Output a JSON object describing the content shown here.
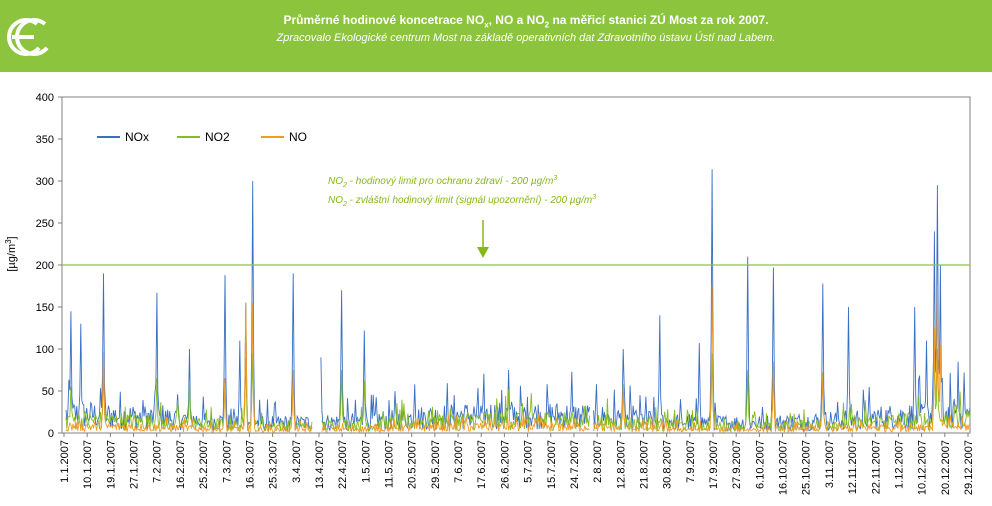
{
  "header": {
    "title_main": "Průměrné hodinové koncetrace NO",
    "title_sub_x": "x",
    "title_mid": ", NO a NO",
    "title_sub_2": "2",
    "title_end": " na měřicí stanici ZÚ Most za rok 2007.",
    "subtitle": "Zpracovalo Ekologické centrum Most na základě operativních dat Zdravotního ústavu Ústí nad Labem.",
    "logo_text": "ec"
  },
  "colors": {
    "banner": "#8cc43e",
    "nox": "#3a6fc4",
    "no2": "#86bc20",
    "no": "#f29a24",
    "limit_line": "#8cc43e",
    "annotation": "#86b818"
  },
  "chart_data": {
    "type": "line",
    "title": "",
    "ylabel": "[µg/m3]",
    "ylabel_parts": [
      "[µg/m",
      "3",
      "]"
    ],
    "ylim": [
      0,
      400
    ],
    "yticks": [
      "0",
      "50",
      "100",
      "150",
      "200",
      "250",
      "300",
      "350",
      "400"
    ],
    "x_tick_labels": [
      "1.1.2007",
      "10.1.2007",
      "19.1.2007",
      "27.1.2007",
      "7.2.2007",
      "16.2.2007",
      "25.2.2007",
      "7.3.2007",
      "16.3.2007",
      "25.3.2007",
      "3.4.2007",
      "13.4.2007",
      "22.4.2007",
      "1.5.2007",
      "11.5.2007",
      "20.5.2007",
      "29.5.2007",
      "7.6.2007",
      "17.6.2007",
      "26.6.2007",
      "5.7.2007",
      "15.7.2007",
      "24.7.2007",
      "2.8.2007",
      "12.8.2007",
      "21.8.2007",
      "30.8.2007",
      "7.9.2007",
      "17.9.2007",
      "27.9.2007",
      "6.10.2007",
      "16.10.2007",
      "25.10.2007",
      "3.11.2007",
      "12.11.2007",
      "22.11.2007",
      "1.12.2007",
      "10.12.2007",
      "20.12.2007",
      "29.12.2007"
    ],
    "legend_position": "top-left",
    "grid": false,
    "series": [
      {
        "name": "NOx",
        "peaks": [
          [
            9,
            145
          ],
          [
            19,
            130
          ],
          [
            42,
            190
          ],
          [
            96,
            167
          ],
          [
            129,
            100
          ],
          [
            165,
            188
          ],
          [
            180,
            110
          ],
          [
            186,
            155
          ],
          [
            193,
            300
          ],
          [
            234,
            190
          ],
          [
            262,
            90
          ],
          [
            283,
            170
          ],
          [
            306,
            122
          ],
          [
            357,
            58
          ],
          [
            452,
            75
          ],
          [
            516,
            73
          ],
          [
            568,
            100
          ],
          [
            605,
            140
          ],
          [
            645,
            107
          ],
          [
            658,
            314
          ],
          [
            694,
            210
          ],
          [
            720,
            197
          ],
          [
            770,
            178
          ],
          [
            796,
            150
          ],
          [
            863,
            150
          ],
          [
            875,
            110
          ],
          [
            883,
            240
          ],
          [
            886,
            295
          ],
          [
            889,
            200
          ],
          [
            907,
            85
          ],
          [
            913,
            72
          ]
        ]
      },
      {
        "name": "NO2",
        "peaks": [
          [
            9,
            55
          ],
          [
            42,
            75
          ],
          [
            96,
            65
          ],
          [
            129,
            62
          ],
          [
            165,
            65
          ],
          [
            186,
            90
          ],
          [
            193,
            95
          ],
          [
            234,
            70
          ],
          [
            283,
            75
          ],
          [
            306,
            62
          ],
          [
            452,
            52
          ],
          [
            568,
            58
          ],
          [
            658,
            95
          ],
          [
            694,
            75
          ],
          [
            720,
            78
          ],
          [
            770,
            72
          ],
          [
            883,
            95
          ],
          [
            886,
            100
          ]
        ]
      },
      {
        "name": "NO",
        "peaks": [
          [
            42,
            97
          ],
          [
            165,
            65
          ],
          [
            186,
            155
          ],
          [
            193,
            155
          ],
          [
            234,
            75
          ],
          [
            568,
            55
          ],
          [
            658,
            175
          ],
          [
            720,
            85
          ],
          [
            770,
            70
          ],
          [
            883,
            125
          ],
          [
            886,
            175
          ],
          [
            889,
            105
          ]
        ]
      }
    ],
    "annotations": [
      {
        "line1_a": "NO",
        "line1_sub": "2",
        "line1_b": " - hodinový limit pro ochranu zdraví - 200 µg/m",
        "line1_sup": "3"
      },
      {
        "line2_a": "NO",
        "line2_sub": "2",
        "line2_b": " - zvláštní hodinový limit (signál upozornění) - 200 µg/m",
        "line2_sup": "3"
      }
    ],
    "limit_value": 200,
    "gaps": [
      [
        0,
        3
      ],
      [
        254,
        262
      ],
      [
        535,
        537
      ]
    ]
  }
}
